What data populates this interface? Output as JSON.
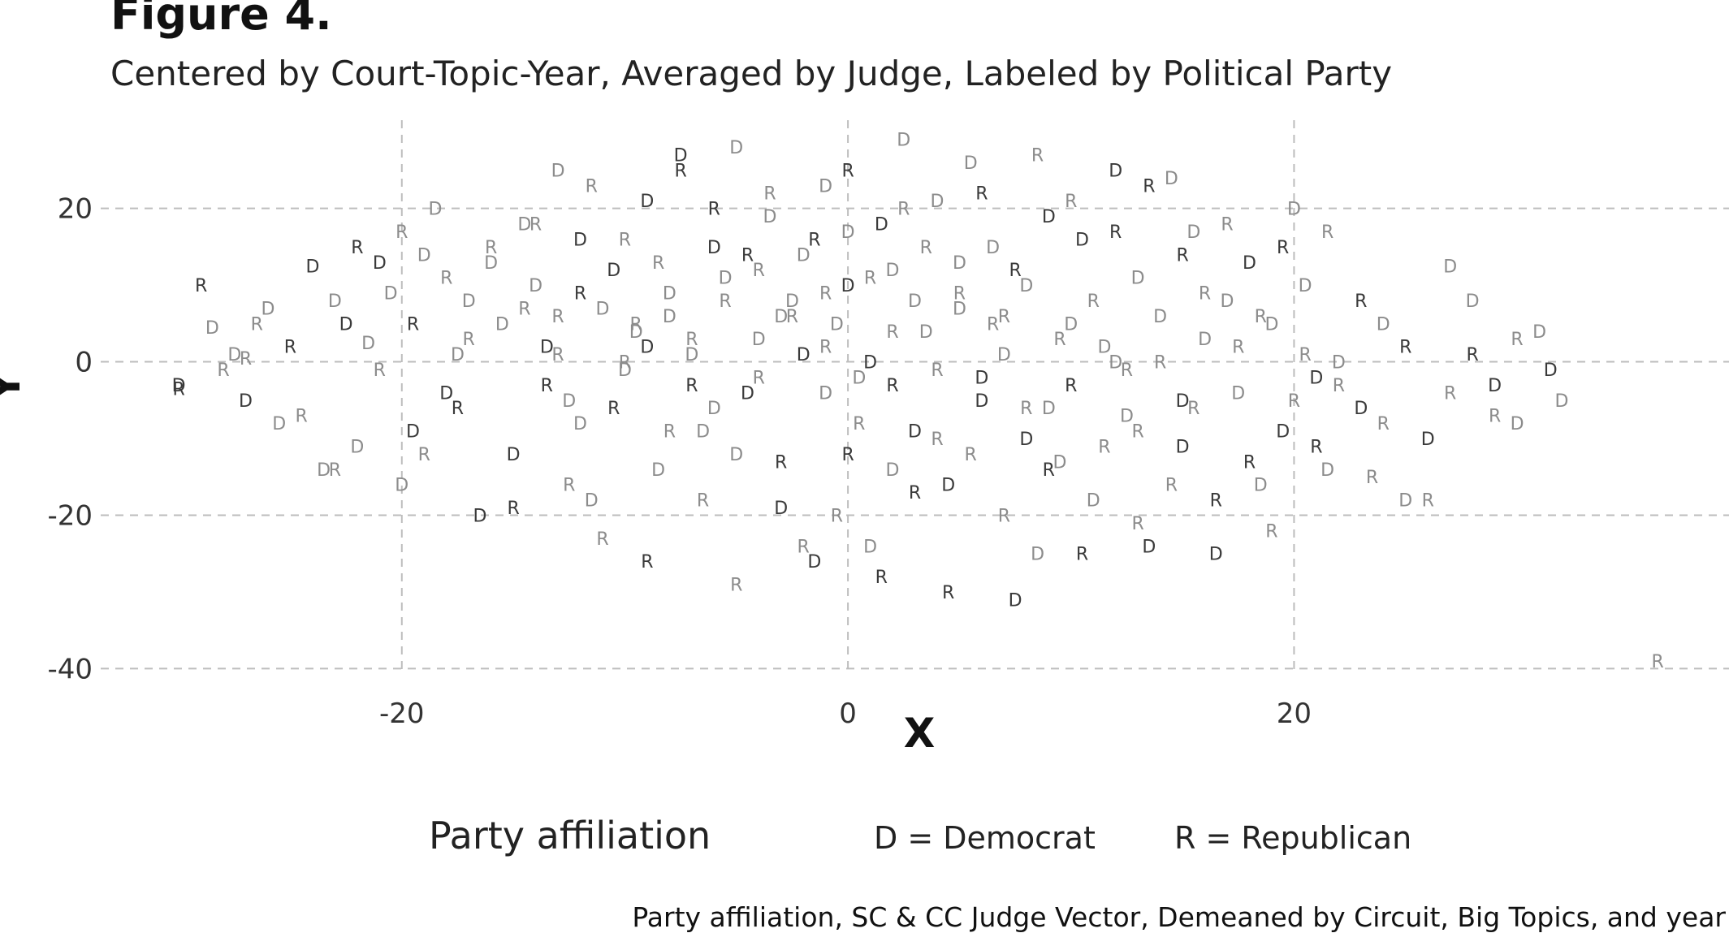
{
  "figure": {
    "title": "Figure 4.",
    "subtitle": "Centered by Court-Topic-Year, Averaged by Judge, Labeled by Political Party",
    "caption": "Party affiliation, SC & CC Judge Vector, Demeaned by Circuit, Big Topics, and year"
  },
  "legend": {
    "title": "Party affiliation",
    "items": [
      {
        "key": "D",
        "label": "D = Democrat"
      },
      {
        "key": "R",
        "label": "R = Republican"
      }
    ]
  },
  "colors": {
    "background": "#ffffff",
    "grid": "#bdbdbd",
    "point_light": "#8c8c8c",
    "point_dark": "#3a3a3a"
  },
  "chart_data": {
    "type": "scatter",
    "xlabel": "X",
    "ylabel": "Y",
    "xlim": [
      -33.5,
      39.5
    ],
    "ylim": [
      -40.7,
      31.5
    ],
    "xticks": [
      -20,
      0,
      20
    ],
    "yticks": [
      -40,
      -20,
      0,
      20
    ],
    "grid": true,
    "legend_position": "bottom",
    "marker": "text label (D or R)",
    "series": [
      {
        "name": "D",
        "label": "Democrat",
        "points": [
          [
            -30,
            -3
          ],
          [
            -28.5,
            4.5
          ],
          [
            -27.5,
            1
          ],
          [
            -27,
            -5
          ],
          [
            -26,
            7
          ],
          [
            -25.5,
            -8
          ],
          [
            -24,
            12.5
          ],
          [
            -23.5,
            -14
          ],
          [
            -23,
            8
          ],
          [
            -22.5,
            5
          ],
          [
            -22,
            -11
          ],
          [
            -21.5,
            2.5
          ],
          [
            -21,
            13
          ],
          [
            -20.5,
            9
          ],
          [
            -20,
            -16
          ],
          [
            -19.5,
            -9
          ],
          [
            -19,
            14
          ],
          [
            -18.5,
            20
          ],
          [
            -18,
            -4
          ],
          [
            -17.5,
            1
          ],
          [
            -17,
            8
          ],
          [
            -16.5,
            -20
          ],
          [
            -16,
            13
          ],
          [
            -15.5,
            5
          ],
          [
            -15,
            -12
          ],
          [
            -14.5,
            18
          ],
          [
            -14,
            10
          ],
          [
            -13.5,
            2
          ],
          [
            -13,
            25
          ],
          [
            -12.5,
            -5
          ],
          [
            -12,
            16
          ],
          [
            -11.5,
            -18
          ],
          [
            -11,
            7
          ],
          [
            -10.5,
            12
          ],
          [
            -10,
            -1
          ],
          [
            -9.5,
            4
          ],
          [
            -9,
            21
          ],
          [
            -8.5,
            -14
          ],
          [
            -8,
            6
          ],
          [
            -7.5,
            27
          ],
          [
            -7,
            1
          ],
          [
            -6.5,
            -9
          ],
          [
            -6,
            15
          ],
          [
            -5.5,
            11
          ],
          [
            -5,
            28
          ],
          [
            -4.5,
            -4
          ],
          [
            -4,
            3
          ],
          [
            -3.5,
            19
          ],
          [
            -3,
            -19
          ],
          [
            -2.5,
            8
          ],
          [
            -2,
            14
          ],
          [
            -1.5,
            -26
          ],
          [
            -1,
            23
          ],
          [
            -0.5,
            5
          ],
          [
            0,
            10
          ],
          [
            0.5,
            -2
          ],
          [
            1,
            -24
          ],
          [
            1.5,
            18
          ],
          [
            2,
            12
          ],
          [
            2.5,
            29
          ],
          [
            3,
            -9
          ],
          [
            3.5,
            4
          ],
          [
            4,
            21
          ],
          [
            4.5,
            -16
          ],
          [
            5,
            7
          ],
          [
            5.5,
            26
          ],
          [
            6,
            -5
          ],
          [
            6.5,
            15
          ],
          [
            7,
            1
          ],
          [
            7.5,
            -31
          ],
          [
            8,
            10
          ],
          [
            8.5,
            -25
          ],
          [
            9,
            19
          ],
          [
            9.5,
            -13
          ],
          [
            10,
            5
          ],
          [
            10.5,
            16
          ],
          [
            11,
            -18
          ],
          [
            11.5,
            2
          ],
          [
            12,
            25
          ],
          [
            12.5,
            -7
          ],
          [
            13,
            11
          ],
          [
            13.5,
            -24
          ],
          [
            14,
            6
          ],
          [
            14.5,
            24
          ],
          [
            15,
            -11
          ],
          [
            15.5,
            17
          ],
          [
            16,
            3
          ],
          [
            16.5,
            -25
          ],
          [
            17,
            8
          ],
          [
            17.5,
            -4
          ],
          [
            18,
            13
          ],
          [
            18.5,
            -16
          ],
          [
            19,
            5
          ],
          [
            19.5,
            -9
          ],
          [
            20,
            20
          ],
          [
            20.5,
            10
          ],
          [
            21,
            -2
          ],
          [
            21.5,
            -14
          ],
          [
            22,
            0
          ],
          [
            23,
            -6
          ],
          [
            24,
            5
          ],
          [
            25,
            -18
          ],
          [
            26,
            -10
          ],
          [
            27,
            12.5
          ],
          [
            28,
            8
          ],
          [
            29,
            -3
          ],
          [
            30,
            -8
          ],
          [
            31,
            4
          ],
          [
            31.5,
            -1
          ],
          [
            32,
            -5
          ],
          [
            -1,
            -4
          ],
          [
            1,
            0
          ],
          [
            3,
            8
          ],
          [
            -6,
            -6
          ],
          [
            6,
            -2
          ],
          [
            -3,
            6
          ],
          [
            9,
            -6
          ],
          [
            -9,
            2
          ],
          [
            12,
            0
          ],
          [
            -12,
            -8
          ],
          [
            15,
            -5
          ],
          [
            0,
            17
          ],
          [
            2,
            -14
          ],
          [
            -2,
            1
          ],
          [
            5,
            13
          ],
          [
            -5,
            -12
          ],
          [
            8,
            -10
          ],
          [
            -8,
            9
          ]
        ]
      },
      {
        "name": "R",
        "label": "Republican",
        "points": [
          [
            -29,
            10
          ],
          [
            -28,
            -1
          ],
          [
            -26.5,
            5
          ],
          [
            -25,
            2
          ],
          [
            -24.5,
            -7
          ],
          [
            -23,
            -14
          ],
          [
            -22,
            15
          ],
          [
            -21,
            -1
          ],
          [
            -20,
            17
          ],
          [
            -19.5,
            5
          ],
          [
            -19,
            -12
          ],
          [
            -18,
            11
          ],
          [
            -17.5,
            -6
          ],
          [
            -17,
            3
          ],
          [
            -16,
            15
          ],
          [
            -15,
            -19
          ],
          [
            -14.5,
            7
          ],
          [
            -14,
            18
          ],
          [
            -13.5,
            -3
          ],
          [
            -13,
            1
          ],
          [
            -12.5,
            -16
          ],
          [
            -12,
            9
          ],
          [
            -11.5,
            23
          ],
          [
            -11,
            -23
          ],
          [
            -10.5,
            -6
          ],
          [
            -10,
            16
          ],
          [
            -9.5,
            5
          ],
          [
            -9,
            -26
          ],
          [
            -8.5,
            13
          ],
          [
            -8,
            -9
          ],
          [
            -7.5,
            25
          ],
          [
            -7,
            3
          ],
          [
            -6.5,
            -18
          ],
          [
            -6,
            20
          ],
          [
            -5.5,
            8
          ],
          [
            -5,
            -29
          ],
          [
            -4.5,
            14
          ],
          [
            -4,
            -2
          ],
          [
            -3.5,
            22
          ],
          [
            -3,
            -13
          ],
          [
            -2.5,
            6
          ],
          [
            -2,
            -24
          ],
          [
            -1.5,
            16
          ],
          [
            -1,
            2
          ],
          [
            -0.5,
            -20
          ],
          [
            0,
            25
          ],
          [
            0.5,
            -8
          ],
          [
            1,
            11
          ],
          [
            1.5,
            -28
          ],
          [
            2,
            4
          ],
          [
            2.5,
            20
          ],
          [
            3,
            -17
          ],
          [
            3.5,
            15
          ],
          [
            4,
            -1
          ],
          [
            4.5,
            -30
          ],
          [
            5,
            9
          ],
          [
            5.5,
            -12
          ],
          [
            6,
            22
          ],
          [
            6.5,
            5
          ],
          [
            7,
            -20
          ],
          [
            7.5,
            12
          ],
          [
            8,
            -6
          ],
          [
            8.5,
            27
          ],
          [
            9,
            -14
          ],
          [
            9.5,
            3
          ],
          [
            10,
            21
          ],
          [
            10.5,
            -25
          ],
          [
            11,
            8
          ],
          [
            11.5,
            -11
          ],
          [
            12,
            17
          ],
          [
            12.5,
            -1
          ],
          [
            13,
            -21
          ],
          [
            13.5,
            23
          ],
          [
            14,
            0
          ],
          [
            14.5,
            -16
          ],
          [
            15,
            14
          ],
          [
            15.5,
            -6
          ],
          [
            16,
            9
          ],
          [
            16.5,
            -18
          ],
          [
            17,
            18
          ],
          [
            17.5,
            2
          ],
          [
            18,
            -13
          ],
          [
            18.5,
            6
          ],
          [
            19,
            -22
          ],
          [
            19.5,
            15
          ],
          [
            20,
            -5
          ],
          [
            20.5,
            1
          ],
          [
            21,
            -11
          ],
          [
            21.5,
            17
          ],
          [
            22,
            -3
          ],
          [
            23,
            8
          ],
          [
            23.5,
            -15
          ],
          [
            24,
            -8
          ],
          [
            25,
            2
          ],
          [
            26,
            -18
          ],
          [
            27,
            -4
          ],
          [
            28,
            1
          ],
          [
            29,
            -7
          ],
          [
            30,
            3
          ],
          [
            -30,
            -3.5
          ],
          [
            -27,
            0.5
          ],
          [
            -1,
            9
          ],
          [
            2,
            -3
          ],
          [
            -4,
            12
          ],
          [
            4,
            -10
          ],
          [
            -7,
            -3
          ],
          [
            7,
            6
          ],
          [
            -10,
            0
          ],
          [
            10,
            -3
          ],
          [
            -13,
            6
          ],
          [
            13,
            -9
          ],
          [
            0,
            -12
          ],
          [
            36.3,
            -39
          ]
        ]
      }
    ]
  }
}
